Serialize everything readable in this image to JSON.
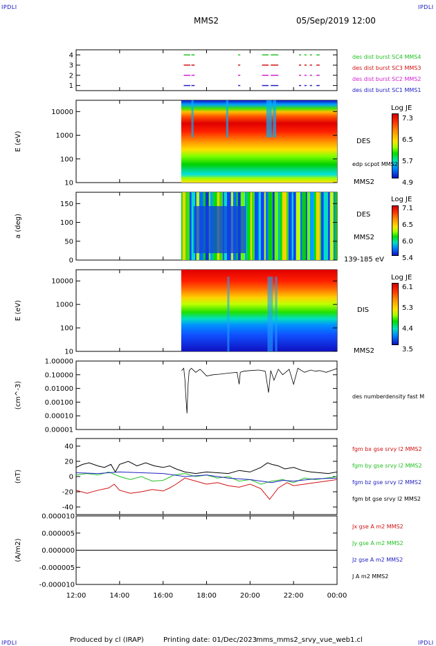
{
  "header": {
    "corner_label": "IPDLI",
    "spacecraft": "MMS2",
    "datetime": "05/Sep/2019 12:00"
  },
  "footer": {
    "produced_by": "Produced by cl (IRAP)",
    "printing_date": "Printing date: 01/Dec/2023",
    "file_name": "mms_mms2_srvy_vue_web1.cl"
  },
  "colors": {
    "mms1": "#2020c0",
    "mms2": "#d020d0",
    "mms3": "#d01010",
    "mms4": "#20c020",
    "black": "#000000",
    "red": "#d01010",
    "green": "#20c020",
    "blue": "#2020c0"
  },
  "chart_data": [
    {
      "type": "line",
      "panel": "burst-availability",
      "ylabel": "",
      "yticks": [
        "4",
        "3",
        "2",
        "1"
      ],
      "ylim": [
        0.5,
        4.5
      ],
      "xlim": [
        "12:00",
        "00:00"
      ],
      "series": [
        {
          "name": "des dist burst SC1 MMS1",
          "color": "#2020c0",
          "y": 1,
          "segments": [
            [
              16.95,
              17.25
            ],
            [
              17.3,
              17.45
            ],
            [
              19.45,
              19.55
            ],
            [
              20.55,
              20.85
            ],
            [
              20.95,
              21.3
            ],
            [
              22.25,
              22.35
            ],
            [
              22.5,
              22.6
            ],
            [
              22.75,
              22.85
            ],
            [
              23.05,
              23.2
            ]
          ]
        },
        {
          "name": "des dist burst SC2 MMS2",
          "color": "#d020d0",
          "y": 2,
          "segments": [
            [
              16.95,
              17.25
            ],
            [
              17.3,
              17.45
            ],
            [
              19.45,
              19.55
            ],
            [
              20.55,
              20.85
            ],
            [
              20.95,
              21.3
            ],
            [
              22.25,
              22.35
            ],
            [
              22.5,
              22.6
            ],
            [
              22.75,
              22.85
            ],
            [
              23.05,
              23.2
            ]
          ]
        },
        {
          "name": "des dist burst SC3 MMS3",
          "color": "#d01010",
          "y": 3,
          "segments": [
            [
              16.95,
              17.25
            ],
            [
              17.3,
              17.45
            ],
            [
              19.45,
              19.55
            ],
            [
              20.55,
              20.85
            ],
            [
              20.95,
              21.3
            ],
            [
              22.25,
              22.35
            ],
            [
              22.5,
              22.6
            ],
            [
              22.75,
              22.85
            ],
            [
              23.05,
              23.2
            ]
          ]
        },
        {
          "name": "des dist burst SC4 MMS4",
          "color": "#20c020",
          "y": 4,
          "segments": [
            [
              16.95,
              17.25
            ],
            [
              17.3,
              17.45
            ],
            [
              19.45,
              19.55
            ],
            [
              20.55,
              20.85
            ],
            [
              20.95,
              21.3
            ],
            [
              22.25,
              22.35
            ],
            [
              22.5,
              22.6
            ],
            [
              22.75,
              22.85
            ],
            [
              23.05,
              23.2
            ]
          ]
        }
      ]
    },
    {
      "type": "heatmap",
      "panel": "des-energy",
      "ylabel": "E (eV)",
      "yscale": "log",
      "ylim": [
        10,
        30000
      ],
      "yticks": [
        "10000",
        "1000",
        "100",
        "10"
      ],
      "data_start": "16:50",
      "instrument_label": "DES",
      "overlay_label": "edp scpot MMS2",
      "spacecraft_label": "MMS2",
      "colorbar": {
        "title": "Log JE",
        "ticks": [
          "7.3",
          "6.5",
          "5.7",
          "4.9"
        ],
        "range": [
          4.9,
          7.3
        ]
      }
    },
    {
      "type": "heatmap",
      "panel": "des-pitch-angle",
      "ylabel": "a (deg)",
      "ylim": [
        0,
        180
      ],
      "yticks": [
        "150",
        "100",
        "50",
        "0"
      ],
      "data_start": "16:50",
      "instrument_label": "DES",
      "spacecraft_label": "MMS2",
      "energy_range_label": "139-185 eV",
      "colorbar": {
        "title": "Log JE",
        "ticks": [
          "7.1",
          "6.5",
          "6.0",
          "5.4"
        ],
        "range": [
          5.4,
          7.1
        ]
      }
    },
    {
      "type": "heatmap",
      "panel": "dis-energy",
      "ylabel": "E (eV)",
      "yscale": "log",
      "ylim": [
        10,
        30000
      ],
      "yticks": [
        "10000",
        "1000",
        "100",
        "10"
      ],
      "data_start": "16:50",
      "instrument_label": "DIS",
      "spacecraft_label": "MMS2",
      "colorbar": {
        "title": "Log JE",
        "ticks": [
          "6.1",
          "5.3",
          "4.4",
          "3.5"
        ],
        "range": [
          3.5,
          6.1
        ]
      }
    },
    {
      "type": "line",
      "panel": "density",
      "ylabel": "(cm^-3)",
      "yscale": "log",
      "ylim": [
        1e-05,
        1.0
      ],
      "yticks": [
        "1.00000",
        "0.10000",
        "0.01000",
        "0.00100",
        "0.00010",
        "0.00001"
      ],
      "series": [
        {
          "name": "des numberdensity fast M",
          "color": "#000000",
          "x": [
            16.85,
            16.95,
            17.0,
            17.05,
            17.1,
            17.15,
            17.2,
            17.3,
            17.5,
            17.7,
            17.9,
            18.0,
            18.3,
            18.6,
            19.0,
            19.4,
            19.5,
            19.55,
            19.7,
            20.0,
            20.4,
            20.7,
            20.85,
            20.9,
            20.95,
            21.1,
            21.3,
            21.5,
            21.8,
            22.0,
            22.2,
            22.5,
            22.8,
            23.0,
            23.2,
            23.5,
            23.8,
            24.0
          ],
          "y": [
            0.2,
            0.3,
            0.05,
            0.002,
            0.00015,
            0.02,
            0.2,
            0.3,
            0.15,
            0.25,
            0.12,
            0.08,
            0.1,
            0.11,
            0.13,
            0.15,
            0.02,
            0.15,
            0.18,
            0.2,
            0.22,
            0.18,
            0.005,
            0.03,
            0.2,
            0.04,
            0.25,
            0.1,
            0.25,
            0.02,
            0.3,
            0.15,
            0.22,
            0.18,
            0.2,
            0.15,
            0.22,
            0.28
          ]
        }
      ]
    },
    {
      "type": "line",
      "panel": "magnetic-field",
      "ylabel": "(nT)",
      "ylim": [
        -50,
        50
      ],
      "yticks": [
        "40",
        "20",
        "0",
        "-20",
        "-40"
      ],
      "series": [
        {
          "name": "fgm bx gse srvy l2 MMS2",
          "color": "#d01010",
          "x": [
            12.0,
            12.5,
            13.0,
            13.5,
            13.75,
            14.0,
            14.5,
            15.0,
            15.5,
            16.0,
            16.3,
            16.6,
            17.0,
            17.5,
            18.0,
            18.5,
            19.0,
            19.5,
            20.0,
            20.5,
            20.9,
            21.3,
            21.7,
            22.0,
            22.5,
            23.0,
            23.5,
            24.0
          ],
          "y": [
            -18,
            -22,
            -18,
            -15,
            -10,
            -18,
            -22,
            -20,
            -17,
            -19,
            -15,
            -10,
            -2,
            -6,
            -10,
            -8,
            -12,
            -14,
            -10,
            -16,
            -30,
            -15,
            -8,
            -12,
            -10,
            -8,
            -6,
            -4
          ]
        },
        {
          "name": "fgm by gse srvy l2 MMS2",
          "color": "#20c020",
          "x": [
            12.0,
            12.5,
            13.0,
            13.5,
            14.0,
            14.5,
            15.0,
            15.5,
            16.0,
            16.5,
            17.0,
            17.5,
            18.0,
            18.5,
            19.0,
            19.5,
            20.0,
            20.5,
            21.0,
            21.5,
            22.0,
            22.5,
            23.0,
            23.5,
            24.0
          ],
          "y": [
            2,
            4,
            2,
            6,
            0,
            -4,
            0,
            -6,
            -5,
            2,
            4,
            0,
            2,
            -2,
            0,
            -6,
            -4,
            -10,
            -6,
            -4,
            -8,
            -2,
            -4,
            -2,
            0
          ]
        },
        {
          "name": "fgm bz gse srvy l2 MMS2",
          "color": "#2020c0",
          "x": [
            12.0,
            13.0,
            14.0,
            15.0,
            16.0,
            17.0,
            18.0,
            19.0,
            20.0,
            20.5,
            21.0,
            21.5,
            22.0,
            23.0,
            24.0
          ],
          "y": [
            5,
            4,
            6,
            5,
            4,
            0,
            2,
            -2,
            -4,
            -6,
            -8,
            -5,
            -6,
            -3,
            -2
          ]
        },
        {
          "name": "fgm bt gse srvy l2 MMS2",
          "color": "#000000",
          "x": [
            12.0,
            12.3,
            12.6,
            13.0,
            13.3,
            13.6,
            13.8,
            14.0,
            14.4,
            14.8,
            15.2,
            15.6,
            16.0,
            16.3,
            16.6,
            17.0,
            17.5,
            18.0,
            18.5,
            19.0,
            19.5,
            20.0,
            20.5,
            20.8,
            21.0,
            21.3,
            21.6,
            22.0,
            22.4,
            22.8,
            23.2,
            23.6,
            24.0
          ],
          "y": [
            12,
            16,
            18,
            14,
            12,
            16,
            6,
            16,
            20,
            14,
            18,
            14,
            12,
            14,
            10,
            6,
            4,
            6,
            5,
            4,
            8,
            6,
            12,
            18,
            16,
            14,
            10,
            12,
            8,
            6,
            5,
            4,
            6
          ]
        }
      ]
    },
    {
      "type": "line",
      "panel": "current-density",
      "ylabel": "(A/m2)",
      "ylim": [
        -1e-05,
        1e-05
      ],
      "yticks": [
        "0.000010",
        "0.000005",
        "0.000000",
        "-0.000005",
        "-0.000010"
      ],
      "series": [
        {
          "name": "Jx gse A m2 MMS2",
          "color": "#d01010",
          "x": [
            12.0,
            24.0
          ],
          "y": [
            0,
            0
          ]
        },
        {
          "name": "Jy gse A m2 MMS2",
          "color": "#20c020",
          "x": [
            12.0,
            24.0
          ],
          "y": [
            0,
            0
          ]
        },
        {
          "name": "Jz gse A m2 MMS2",
          "color": "#2020c0",
          "x": [
            12.0,
            24.0
          ],
          "y": [
            0,
            0
          ]
        },
        {
          "name": "J A m2 MMS2",
          "color": "#000000",
          "x": [
            12.0,
            24.0
          ],
          "y": [
            0,
            0
          ]
        }
      ]
    }
  ],
  "time_axis": {
    "ticks": [
      "12:00",
      "14:00",
      "16:00",
      "18:00",
      "20:00",
      "22:00",
      "00:00"
    ]
  }
}
